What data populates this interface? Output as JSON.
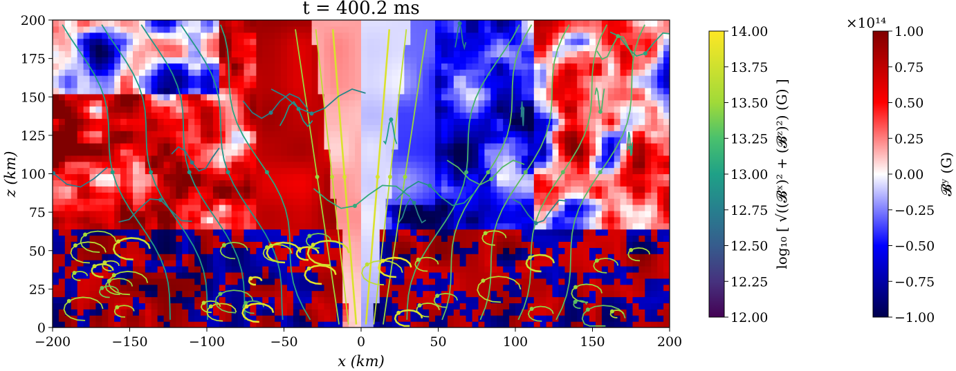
{
  "chart_data": {
    "type": "heatmap",
    "title": "t = 400.2 ms",
    "xlabel": "x (km)",
    "ylabel": "z (km)",
    "xlim": [
      -200,
      200
    ],
    "ylim": [
      0,
      200
    ],
    "xticks": [
      "−200",
      "−150",
      "−100",
      "−50",
      "0",
      "50",
      "100",
      "150",
      "200"
    ],
    "yticks": [
      "0",
      "25",
      "50",
      "75",
      "100",
      "125",
      "150",
      "175",
      "200"
    ],
    "colorbars": [
      {
        "name": "log10[ sqrt((Bx)^2 + (Bz)^2) (G) ]",
        "label": "log₁₀ [ √((𝓑ˣ)² + (𝓑ᶻ)²) (G) ]",
        "colormap": "viridis",
        "range": [
          12.0,
          14.0
        ],
        "ticks": [
          "12.00",
          "12.25",
          "12.50",
          "12.75",
          "13.00",
          "13.25",
          "13.50",
          "13.75",
          "14.00"
        ]
      },
      {
        "name": "By (G)",
        "label": "𝓑ʸ (G)",
        "colormap": "seismic",
        "range": [
          -1.0,
          1.0
        ],
        "multiplier": "×10¹⁴",
        "ticks": [
          "−1.00",
          "−0.75",
          "−0.50",
          "−0.25",
          "0.00",
          "0.25",
          "0.50",
          "0.75",
          "1.00"
        ]
      }
    ],
    "field_description": {
      "central_funnel": "white to light blue, low |By| along the axis |x| < 20 km",
      "left_region_sign": "predominantly positive By (red) with blue filaments",
      "right_region_sign": "predominantly negative By (blue) with red filaments",
      "near_base": "strongly mixed ±By (dark red / navy) for z < 60 km"
    },
    "streamlines": "poloidal field lines colored by log10 |B_pol|; yellow near the axis and base, teal/green elsewhere"
  },
  "colors": {
    "seismic_neg": "#00004d",
    "seismic_mid": "#ffffff",
    "seismic_pos": "#800000",
    "viridis_low": "#440154",
    "viridis_high": "#fde725"
  }
}
